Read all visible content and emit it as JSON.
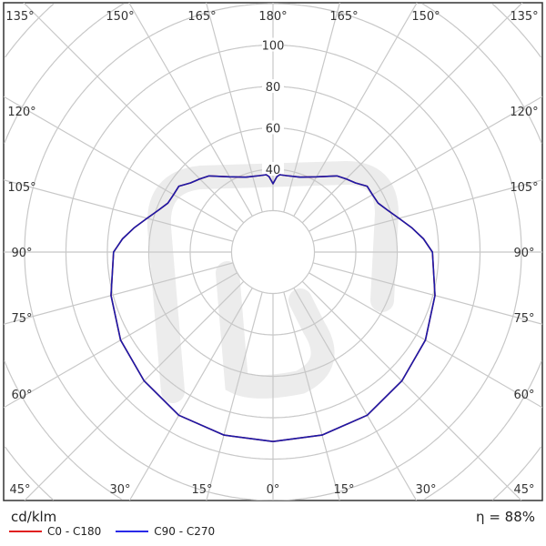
{
  "chart_data": {
    "type": "polar",
    "title": "",
    "unit_label": "cd/klm",
    "efficiency_label": "η = 88%",
    "radial_ticks": [
      40,
      60,
      80,
      100
    ],
    "radial_grid_step": 20,
    "angle_step": 15,
    "angle_labels": {
      "top": [
        "135°",
        "150°",
        "165°",
        "180°",
        "165°",
        "150°",
        "135°"
      ],
      "left": [
        "120°",
        "105°",
        "90°",
        "75°",
        "60°"
      ],
      "right": [
        "120°",
        "105°",
        "90°",
        "75°",
        "60°"
      ],
      "bottom": [
        "45°",
        "30°",
        "15°",
        "0°",
        "15°",
        "30°",
        "45°"
      ]
    },
    "grid": true,
    "legend_placement": "bottom-left",
    "angles": [
      0,
      15,
      30,
      45,
      60,
      75,
      90,
      95,
      100,
      105,
      110,
      115,
      120,
      125,
      130,
      135,
      140,
      150,
      160,
      170,
      175,
      177,
      180
    ],
    "series": [
      {
        "name": "C0 - C180",
        "color": "#e02020",
        "values": [
          91.5,
          91.5,
          91,
          88,
          85,
          81,
          77,
          73,
          68,
          63,
          59,
          56,
          55.5,
          55.5,
          52,
          50,
          48,
          42,
          38.5,
          37.5,
          37.5,
          36.5,
          33
        ]
      },
      {
        "name": "C90 - C270",
        "color": "#1f1fd0",
        "values": [
          91.5,
          91.5,
          91,
          88,
          85,
          81,
          77,
          73,
          68,
          63,
          59,
          56,
          55.5,
          55.5,
          52,
          50,
          48,
          42,
          38.5,
          37.5,
          37.5,
          36.5,
          33
        ]
      }
    ]
  }
}
